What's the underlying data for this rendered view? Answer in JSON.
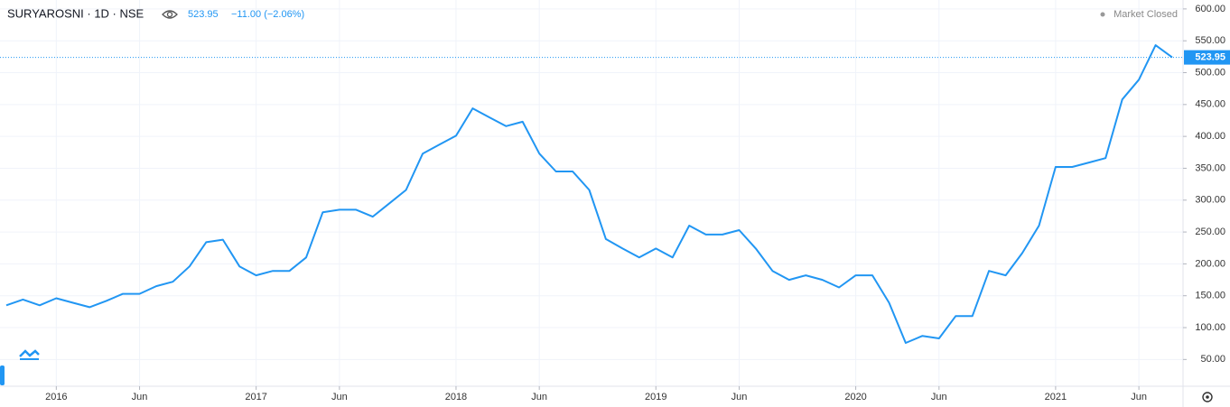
{
  "chart_data": {
    "type": "line",
    "title": "SURYAROSNI · 1D · NSE",
    "change": "−11.00 (−2.06%)",
    "status": "Market Closed",
    "x": [
      "2015-10",
      "2015-11",
      "2015-12",
      "2016-01",
      "2016-02",
      "2016-03",
      "2016-04",
      "2016-05",
      "2016-06",
      "2016-07",
      "2016-08",
      "2016-09",
      "2016-10",
      "2016-11",
      "2016-12",
      "2017-01",
      "2017-02",
      "2017-03",
      "2017-04",
      "2017-05",
      "2017-06",
      "2017-07",
      "2017-08",
      "2017-09",
      "2017-10",
      "2017-11",
      "2017-12",
      "2018-01",
      "2018-02",
      "2018-03",
      "2018-04",
      "2018-05",
      "2018-06",
      "2018-07",
      "2018-08",
      "2018-09",
      "2018-10",
      "2018-11",
      "2018-12",
      "2019-01",
      "2019-02",
      "2019-03",
      "2019-04",
      "2019-05",
      "2019-06",
      "2019-07",
      "2019-08",
      "2019-09",
      "2019-10",
      "2019-11",
      "2019-12",
      "2020-01",
      "2020-02",
      "2020-03",
      "2020-04",
      "2020-05",
      "2020-06",
      "2020-07",
      "2020-08",
      "2020-09",
      "2020-10",
      "2020-11",
      "2020-12",
      "2021-01",
      "2021-02",
      "2021-03",
      "2021-04",
      "2021-05",
      "2021-06",
      "2021-07",
      "2021-08"
    ],
    "values": [
      135,
      144,
      135,
      146,
      139,
      132,
      142,
      153,
      153,
      165,
      172,
      196,
      234,
      238,
      196,
      182,
      189,
      189,
      210,
      281,
      285,
      285,
      274,
      295,
      316,
      373,
      387,
      401,
      444,
      430,
      416,
      423,
      373,
      345,
      345,
      316,
      239,
      224,
      210,
      224,
      210,
      260,
      246,
      246,
      253,
      224,
      189,
      175,
      182,
      175,
      163,
      182,
      182,
      139,
      76,
      87,
      83,
      118,
      118,
      189,
      182,
      217,
      260,
      352,
      352,
      359,
      366,
      458,
      489,
      543,
      523.95
    ],
    "color": "#2196f3",
    "xlim": [
      "2015-10",
      "2021-08"
    ],
    "xticks": [
      {
        "value": "2016-01",
        "label": "2016"
      },
      {
        "value": "2016-06",
        "label": "Jun"
      },
      {
        "value": "2017-01",
        "label": "2017"
      },
      {
        "value": "2017-06",
        "label": "Jun"
      },
      {
        "value": "2018-01",
        "label": "2018"
      },
      {
        "value": "2018-06",
        "label": "Jun"
      },
      {
        "value": "2019-01",
        "label": "2019"
      },
      {
        "value": "2019-06",
        "label": "Jun"
      },
      {
        "value": "2020-01",
        "label": "2020"
      },
      {
        "value": "2020-06",
        "label": "Jun"
      },
      {
        "value": "2021-01",
        "label": "2021"
      },
      {
        "value": "2021-06",
        "label": "Jun"
      }
    ],
    "ylim": [
      8,
      614
    ],
    "yticks": [
      {
        "value": 50,
        "label": "50.00"
      },
      {
        "value": 100,
        "label": "100.00"
      },
      {
        "value": 150,
        "label": "150.00"
      },
      {
        "value": 200,
        "label": "200.00"
      },
      {
        "value": 250,
        "label": "250.00"
      },
      {
        "value": 300,
        "label": "300.00"
      },
      {
        "value": 350,
        "label": "350.00"
      },
      {
        "value": 400,
        "label": "400.00"
      },
      {
        "value": 450,
        "label": "450.00"
      },
      {
        "value": 500,
        "label": "500.00"
      },
      {
        "value": 550,
        "label": "550.00"
      },
      {
        "value": 600,
        "label": "600.00"
      }
    ],
    "grid": true
  }
}
